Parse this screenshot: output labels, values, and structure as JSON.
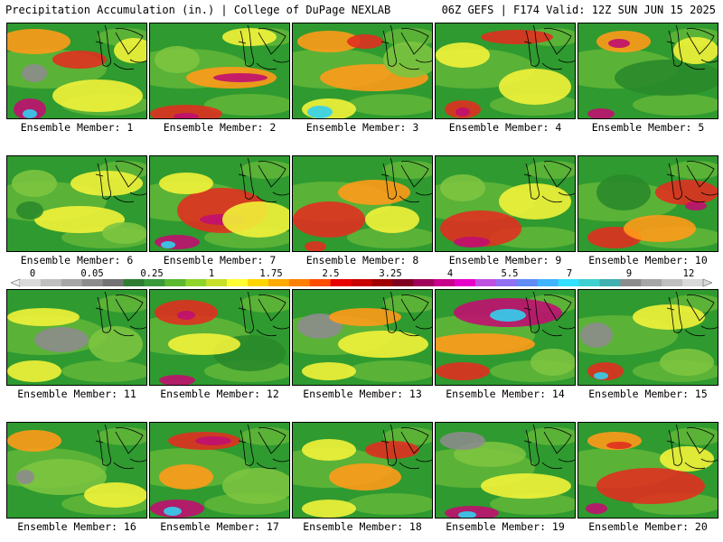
{
  "header": {
    "title": "Precipitation Accumulation (in.) | College of DuPage NEXLAB",
    "run_info": "06Z GEFS | F174 Valid: 12Z SUN JUN 15 2025"
  },
  "colorbar": {
    "labels": [
      "0",
      "0.05",
      "0.25",
      "1",
      "1.75",
      "2.5",
      "3.25",
      "4",
      "5.5",
      "7",
      "9",
      "12"
    ],
    "colors": [
      "#d9d9d9",
      "#bfbfbf",
      "#a6a6a6",
      "#8c8c8c",
      "#737373",
      "#2e7d32",
      "#3a9a3a",
      "#5cb82e",
      "#8fd42a",
      "#c8e02a",
      "#ffff33",
      "#ffd500",
      "#ffaa00",
      "#ff7f00",
      "#ff4d00",
      "#e60000",
      "#c80000",
      "#a00000",
      "#800020",
      "#a0005a",
      "#c8008c",
      "#e600c8",
      "#c050e0",
      "#9070f0",
      "#5f8cf5",
      "#40b4ff",
      "#33e0ff",
      "#40d0d0",
      "#40b0b0",
      "#8c8c8c",
      "#a6a6a6",
      "#bfbfbf",
      "#d9d9d9"
    ]
  },
  "panels": [
    {
      "label": "Ensemble Member: 1"
    },
    {
      "label": "Ensemble Member: 2"
    },
    {
      "label": "Ensemble Member: 3"
    },
    {
      "label": "Ensemble Member: 4"
    },
    {
      "label": "Ensemble Member: 5"
    },
    {
      "label": "Ensemble Member: 6"
    },
    {
      "label": "Ensemble Member: 7"
    },
    {
      "label": "Ensemble Member: 8"
    },
    {
      "label": "Ensemble Member: 9"
    },
    {
      "label": "Ensemble Member: 10"
    },
    {
      "label": "Ensemble Member: 11"
    },
    {
      "label": "Ensemble Member: 12"
    },
    {
      "label": "Ensemble Member: 13"
    },
    {
      "label": "Ensemble Member: 14"
    },
    {
      "label": "Ensemble Member: 15"
    },
    {
      "label": "Ensemble Member: 16"
    },
    {
      "label": "Ensemble Member: 17"
    },
    {
      "label": "Ensemble Member: 18"
    },
    {
      "label": "Ensemble Member: 19"
    },
    {
      "label": "Ensemble Member: 20"
    }
  ]
}
